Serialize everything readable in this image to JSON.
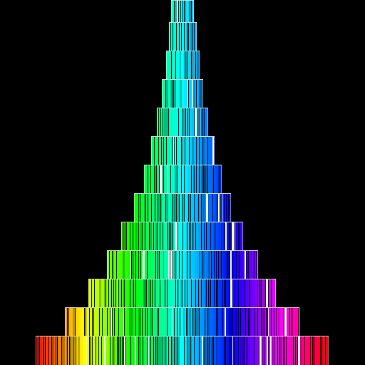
{
  "artwork": {
    "background_color": "#000000",
    "tier_count": 13,
    "color_sweep": [
      "#ff0000",
      "#ffff00",
      "#00ff00",
      "#00ffff",
      "#0000ff",
      "#ff00ff",
      "#ff0000"
    ]
  }
}
